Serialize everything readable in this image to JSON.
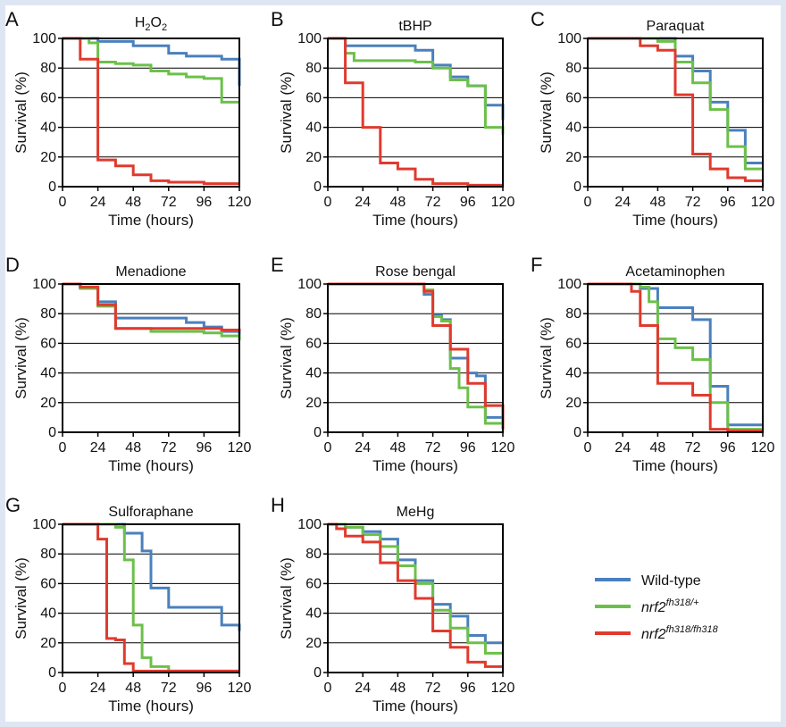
{
  "colors": {
    "wild_type": "#4a80bd",
    "het": "#6cc04a",
    "hom": "#e03a2e",
    "grid": "#000000"
  },
  "legend": {
    "items": [
      {
        "key": "wild_type",
        "base": "Wild-type",
        "sup": ""
      },
      {
        "key": "het",
        "base": "nrf2",
        "sup": "fh318/+"
      },
      {
        "key": "hom",
        "base": "nrf2",
        "sup": "fh318/fh318"
      }
    ]
  },
  "chart_data": [
    {
      "panel": "A",
      "title": "H2O2",
      "title_main": "H",
      "title_sub": "2",
      "title_main2": "O",
      "title_sub2": "2",
      "type": "line",
      "step": true,
      "xlabel": "Time (hours)",
      "ylabel": "Survival (%)",
      "xlim": [
        0,
        120
      ],
      "ylim": [
        0,
        100
      ],
      "xticks": [
        "0",
        "24",
        "48",
        "72",
        "96",
        "120"
      ],
      "yticks": [
        "0",
        "20",
        "40",
        "60",
        "80",
        "100"
      ],
      "grid": "horizontal",
      "series": [
        {
          "key": "wild_type",
          "x": [
            0,
            12,
            24,
            48,
            60,
            72,
            84,
            108,
            120
          ],
          "y": [
            100,
            100,
            98,
            95,
            95,
            90,
            88,
            86,
            68
          ]
        },
        {
          "key": "het",
          "x": [
            0,
            12,
            18,
            24,
            36,
            48,
            60,
            72,
            84,
            96,
            108,
            120
          ],
          "y": [
            100,
            100,
            97,
            84,
            83,
            82,
            78,
            76,
            74,
            73,
            57,
            57
          ]
        },
        {
          "key": "hom",
          "x": [
            0,
            6,
            12,
            18,
            24,
            36,
            48,
            60,
            72,
            96,
            108,
            120
          ],
          "y": [
            100,
            100,
            86,
            86,
            18,
            14,
            8,
            4,
            3,
            2,
            2,
            2
          ]
        }
      ]
    },
    {
      "panel": "B",
      "title": "tBHP",
      "type": "line",
      "step": true,
      "xlabel": "Time (hours)",
      "ylabel": "Survival (%)",
      "xlim": [
        0,
        120
      ],
      "ylim": [
        0,
        100
      ],
      "xticks": [
        "0",
        "24",
        "48",
        "72",
        "96",
        "120"
      ],
      "yticks": [
        "0",
        "20",
        "40",
        "60",
        "80",
        "100"
      ],
      "grid": "horizontal",
      "series": [
        {
          "key": "wild_type",
          "x": [
            0,
            6,
            12,
            48,
            60,
            72,
            84,
            96,
            108,
            120
          ],
          "y": [
            100,
            100,
            95,
            95,
            92,
            82,
            74,
            68,
            55,
            45
          ]
        },
        {
          "key": "het",
          "x": [
            0,
            6,
            12,
            18,
            60,
            72,
            84,
            96,
            108,
            120
          ],
          "y": [
            100,
            100,
            90,
            85,
            84,
            80,
            72,
            68,
            40,
            35
          ]
        },
        {
          "key": "hom",
          "x": [
            0,
            6,
            12,
            24,
            36,
            48,
            60,
            72,
            96,
            120
          ],
          "y": [
            100,
            100,
            70,
            40,
            16,
            12,
            5,
            2,
            1,
            1
          ]
        }
      ]
    },
    {
      "panel": "C",
      "title": "Paraquat",
      "type": "line",
      "step": true,
      "xlabel": "Time (hours)",
      "ylabel": "Survival (%)",
      "xlim": [
        0,
        120
      ],
      "ylim": [
        0,
        100
      ],
      "xticks": [
        "0",
        "24",
        "48",
        "72",
        "96",
        "120"
      ],
      "yticks": [
        "0",
        "20",
        "40",
        "60",
        "80",
        "100"
      ],
      "grid": "horizontal",
      "series": [
        {
          "key": "wild_type",
          "x": [
            0,
            36,
            48,
            60,
            72,
            84,
            96,
            108,
            120
          ],
          "y": [
            100,
            100,
            100,
            88,
            78,
            57,
            38,
            16,
            16
          ]
        },
        {
          "key": "het",
          "x": [
            0,
            36,
            48,
            60,
            72,
            84,
            96,
            108,
            120
          ],
          "y": [
            100,
            100,
            98,
            84,
            70,
            52,
            27,
            12,
            12
          ]
        },
        {
          "key": "hom",
          "x": [
            0,
            36,
            48,
            60,
            72,
            84,
            96,
            108,
            120
          ],
          "y": [
            100,
            95,
            92,
            62,
            22,
            12,
            6,
            4,
            4
          ]
        }
      ]
    },
    {
      "panel": "D",
      "title": "Menadione",
      "type": "line",
      "step": true,
      "xlabel": "Time (hours)",
      "ylabel": "Survival (%)",
      "xlim": [
        0,
        120
      ],
      "ylim": [
        0,
        100
      ],
      "xticks": [
        "0",
        "24",
        "48",
        "72",
        "96",
        "120"
      ],
      "yticks": [
        "0",
        "20",
        "40",
        "60",
        "80",
        "100"
      ],
      "grid": "horizontal",
      "series": [
        {
          "key": "wild_type",
          "x": [
            0,
            12,
            24,
            36,
            72,
            84,
            96,
            108,
            120
          ],
          "y": [
            100,
            98,
            88,
            77,
            77,
            74,
            71,
            68,
            66
          ]
        },
        {
          "key": "het",
          "x": [
            0,
            12,
            24,
            36,
            48,
            60,
            96,
            108,
            120
          ],
          "y": [
            100,
            97,
            85,
            70,
            70,
            68,
            67,
            65,
            62
          ]
        },
        {
          "key": "hom",
          "x": [
            0,
            12,
            24,
            36,
            60,
            84,
            108,
            120
          ],
          "y": [
            100,
            98,
            86,
            70,
            70,
            70,
            69,
            68
          ]
        }
      ]
    },
    {
      "panel": "E",
      "title": "Rose bengal",
      "type": "line",
      "step": true,
      "xlabel": "Time (hours)",
      "ylabel": "Survival (%)",
      "xlim": [
        0,
        120
      ],
      "ylim": [
        0,
        100
      ],
      "xticks": [
        "0",
        "24",
        "48",
        "72",
        "96",
        "120"
      ],
      "yticks": [
        "0",
        "20",
        "40",
        "60",
        "80",
        "100"
      ],
      "grid": "horizontal",
      "series": [
        {
          "key": "wild_type",
          "x": [
            0,
            60,
            66,
            72,
            78,
            84,
            96,
            102,
            108,
            120
          ],
          "y": [
            100,
            100,
            93,
            79,
            76,
            50,
            40,
            38,
            10,
            4
          ]
        },
        {
          "key": "het",
          "x": [
            0,
            60,
            66,
            72,
            78,
            84,
            90,
            96,
            108,
            120
          ],
          "y": [
            100,
            100,
            96,
            78,
            75,
            43,
            30,
            17,
            6,
            6
          ]
        },
        {
          "key": "hom",
          "x": [
            0,
            60,
            66,
            72,
            78,
            84,
            96,
            108,
            114,
            120
          ],
          "y": [
            100,
            100,
            95,
            72,
            72,
            56,
            33,
            18,
            18,
            2
          ]
        }
      ]
    },
    {
      "panel": "F",
      "title": "Acetaminophen",
      "type": "line",
      "step": true,
      "xlabel": "Time (hours)",
      "ylabel": "Survival (%)",
      "xlim": [
        0,
        120
      ],
      "ylim": [
        0,
        100
      ],
      "xticks": [
        "0",
        "24",
        "48",
        "72",
        "96",
        "120"
      ],
      "yticks": [
        "0",
        "20",
        "40",
        "60",
        "80",
        "100"
      ],
      "grid": "horizontal",
      "series": [
        {
          "key": "wild_type",
          "x": [
            0,
            24,
            36,
            48,
            60,
            72,
            84,
            96,
            120
          ],
          "y": [
            100,
            100,
            97,
            84,
            84,
            76,
            31,
            5,
            5
          ]
        },
        {
          "key": "het",
          "x": [
            0,
            24,
            36,
            42,
            48,
            60,
            72,
            84,
            96,
            120
          ],
          "y": [
            100,
            100,
            98,
            88,
            63,
            57,
            49,
            20,
            2,
            2
          ]
        },
        {
          "key": "hom",
          "x": [
            0,
            24,
            30,
            36,
            48,
            72,
            84,
            96,
            120
          ],
          "y": [
            100,
            100,
            95,
            72,
            33,
            25,
            2,
            1,
            1
          ]
        }
      ]
    },
    {
      "panel": "G",
      "title": "Sulforaphane",
      "type": "line",
      "step": true,
      "xlabel": "Time (hours)",
      "ylabel": "Survival (%)",
      "xlim": [
        0,
        120
      ],
      "ylim": [
        0,
        100
      ],
      "xticks": [
        "0",
        "24",
        "48",
        "72",
        "96",
        "120"
      ],
      "yticks": [
        "0",
        "20",
        "40",
        "60",
        "80",
        "100"
      ],
      "grid": "horizontal",
      "series": [
        {
          "key": "wild_type",
          "x": [
            0,
            36,
            42,
            54,
            60,
            72,
            84,
            108,
            120
          ],
          "y": [
            100,
            100,
            94,
            82,
            57,
            44,
            44,
            32,
            28
          ]
        },
        {
          "key": "het",
          "x": [
            0,
            30,
            36,
            42,
            48,
            54,
            60,
            72,
            84,
            120
          ],
          "y": [
            100,
            100,
            98,
            76,
            32,
            10,
            4,
            1,
            1,
            1
          ]
        },
        {
          "key": "hom",
          "x": [
            0,
            18,
            24,
            30,
            36,
            42,
            48,
            60,
            120
          ],
          "y": [
            100,
            100,
            90,
            23,
            22,
            6,
            1,
            1,
            1
          ]
        }
      ]
    },
    {
      "panel": "H",
      "title": "MeHg",
      "type": "line",
      "step": true,
      "xlabel": "Time (hours)",
      "ylabel": "Survival (%)",
      "xlim": [
        0,
        120
      ],
      "ylim": [
        0,
        100
      ],
      "xticks": [
        "0",
        "24",
        "48",
        "72",
        "96",
        "120"
      ],
      "yticks": [
        "0",
        "20",
        "40",
        "60",
        "80",
        "100"
      ],
      "grid": "horizontal",
      "series": [
        {
          "key": "wild_type",
          "x": [
            0,
            12,
            24,
            36,
            48,
            60,
            72,
            84,
            96,
            108,
            120
          ],
          "y": [
            100,
            98,
            95,
            90,
            76,
            62,
            46,
            38,
            25,
            20,
            20
          ]
        },
        {
          "key": "het",
          "x": [
            0,
            12,
            24,
            36,
            48,
            60,
            72,
            84,
            96,
            108,
            120
          ],
          "y": [
            100,
            98,
            93,
            85,
            72,
            60,
            42,
            30,
            20,
            13,
            13
          ]
        },
        {
          "key": "hom",
          "x": [
            0,
            6,
            12,
            24,
            36,
            48,
            60,
            72,
            84,
            96,
            108,
            120
          ],
          "y": [
            100,
            97,
            92,
            88,
            74,
            62,
            50,
            28,
            17,
            7,
            4,
            4
          ]
        }
      ]
    }
  ]
}
